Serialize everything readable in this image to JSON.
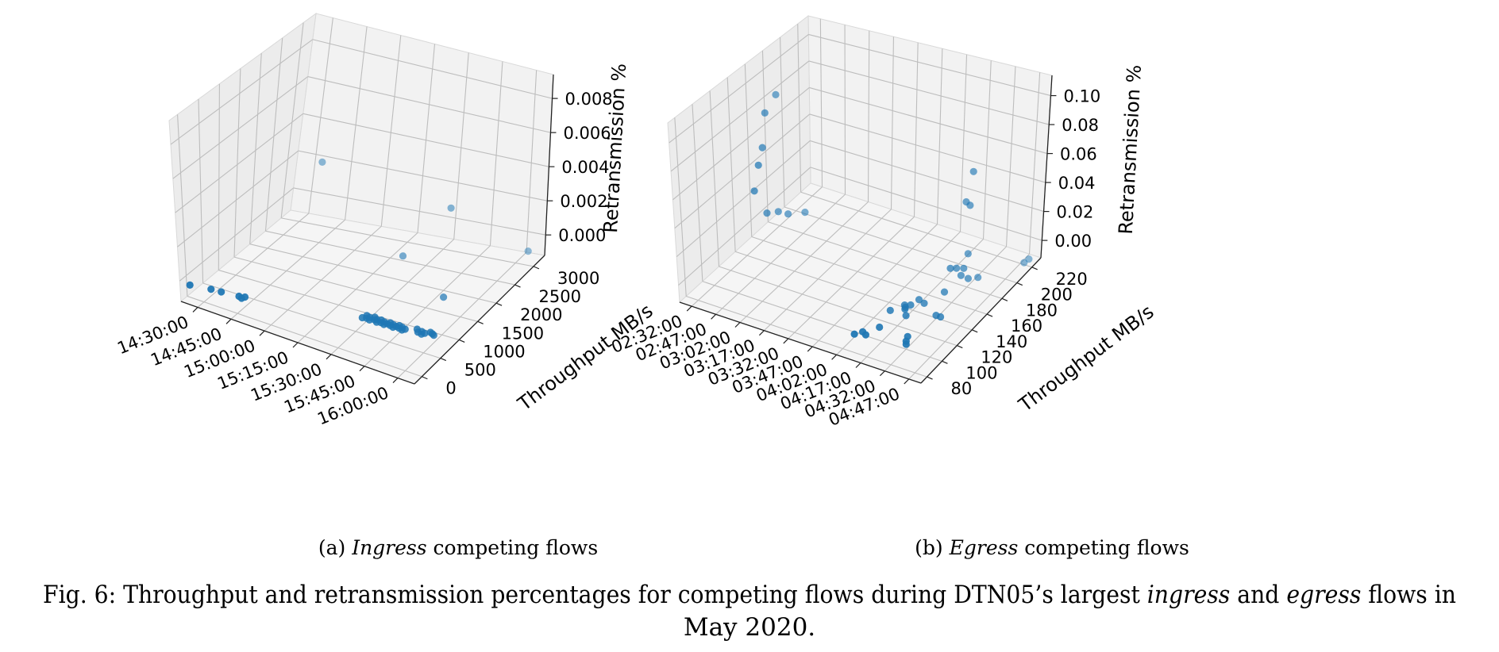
{
  "chart_data": [
    {
      "type": "scatter3d",
      "caption": {
        "prefix": "(a) ",
        "italic": "Ingress",
        "suffix": " competing flows"
      },
      "xlabel": "",
      "ylabel": "Throughput MB/s",
      "zlabel": "Retransmission %",
      "xticks": [
        "14:30:00",
        "14:45:00",
        "15:00:00",
        "15:15:00",
        "15:30:00",
        "15:45:00",
        "16:00:00"
      ],
      "yticks": [
        "0",
        "500",
        "1000",
        "1500",
        "2000",
        "2500",
        "3000"
      ],
      "zticks": [
        "0.000",
        "0.002",
        "0.004",
        "0.006",
        "0.008"
      ],
      "xlim": [
        0,
        6.6
      ],
      "ylim": [
        -150,
        3400
      ],
      "zlim": [
        -0.0005,
        0.0088
      ],
      "grid": true,
      "color": "#1f77b4",
      "points": [
        {
          "x": 0.03,
          "y": 120,
          "z": 0
        },
        {
          "x": 0.55,
          "y": 200,
          "z": 0
        },
        {
          "x": 0.82,
          "y": 220,
          "z": 0
        },
        {
          "x": 1.28,
          "y": 260,
          "z": 0
        },
        {
          "x": 1.38,
          "y": 230,
          "z": 0
        },
        {
          "x": 1.42,
          "y": 290,
          "z": 0
        },
        {
          "x": 4.3,
          "y": 700,
          "z": 0
        },
        {
          "x": 4.35,
          "y": 780,
          "z": 0
        },
        {
          "x": 4.4,
          "y": 720,
          "z": 0
        },
        {
          "x": 4.45,
          "y": 760,
          "z": 0
        },
        {
          "x": 4.5,
          "y": 700,
          "z": 0
        },
        {
          "x": 4.55,
          "y": 800,
          "z": 0
        },
        {
          "x": 4.6,
          "y": 740,
          "z": 0
        },
        {
          "x": 4.65,
          "y": 760,
          "z": 0
        },
        {
          "x": 4.7,
          "y": 700,
          "z": 0
        },
        {
          "x": 4.75,
          "y": 780,
          "z": 0
        },
        {
          "x": 4.8,
          "y": 720,
          "z": 0
        },
        {
          "x": 4.85,
          "y": 760,
          "z": 0
        },
        {
          "x": 4.9,
          "y": 700,
          "z": 0
        },
        {
          "x": 4.95,
          "y": 740,
          "z": 0
        },
        {
          "x": 5.0,
          "y": 780,
          "z": 0
        },
        {
          "x": 5.05,
          "y": 720,
          "z": 0
        },
        {
          "x": 5.1,
          "y": 760,
          "z": 0
        },
        {
          "x": 5.15,
          "y": 700,
          "z": 0
        },
        {
          "x": 5.2,
          "y": 740,
          "z": 0
        },
        {
          "x": 5.25,
          "y": 780,
          "z": 0
        },
        {
          "x": 5.3,
          "y": 720,
          "z": 0
        },
        {
          "x": 5.35,
          "y": 760,
          "z": 0
        },
        {
          "x": 5.4,
          "y": 700,
          "z": 0
        },
        {
          "x": 5.45,
          "y": 740,
          "z": 0
        },
        {
          "x": 5.7,
          "y": 820,
          "z": 0
        },
        {
          "x": 5.78,
          "y": 760,
          "z": 0
        },
        {
          "x": 5.85,
          "y": 800,
          "z": 0
        },
        {
          "x": 5.9,
          "y": 740,
          "z": 0
        },
        {
          "x": 5.95,
          "y": 780,
          "z": 0
        },
        {
          "x": 6.05,
          "y": 840,
          "z": 0
        },
        {
          "x": 6.12,
          "y": 820,
          "z": 0
        },
        {
          "x": 6.18,
          "y": 800,
          "z": 0
        },
        {
          "x": 3.75,
          "y": 2450,
          "z": 0
        },
        {
          "x": 5.55,
          "y": 1700,
          "z": 0
        },
        {
          "x": 6.35,
          "y": 3200,
          "z": 0
        },
        {
          "x": 0.9,
          "y": 3100,
          "z": 0.0025
        },
        {
          "x": 4.55,
          "y": 2900,
          "z": 0.002
        }
      ]
    },
    {
      "type": "scatter3d",
      "caption": {
        "prefix": "(b)  ",
        "italic": "Egress",
        "suffix": " competing flows"
      },
      "xlabel": "",
      "ylabel": "Throughput MB/s",
      "zlabel": "Retransmission %",
      "xticks": [
        "02:32:00",
        "02:47:00",
        "03:02:00",
        "03:17:00",
        "03:32:00",
        "03:47:00",
        "04:02:00",
        "04:17:00",
        "04:32:00",
        "04:47:00"
      ],
      "yticks": [
        "80",
        "100",
        "120",
        "140",
        "160",
        "180",
        "200",
        "220"
      ],
      "zticks": [
        "0.00",
        "0.02",
        "0.04",
        "0.06",
        "0.08",
        "0.10"
      ],
      "xlim": [
        0,
        10.6
      ],
      "ylim": [
        70,
        232
      ],
      "zlim": [
        -0.008,
        0.115
      ],
      "grid": true,
      "color": "#1f77b4",
      "points": [
        {
          "x": 0.3,
          "y": 185,
          "z": 0.082
        },
        {
          "x": 0.45,
          "y": 168,
          "z": 0.078
        },
        {
          "x": 0.6,
          "y": 160,
          "z": 0.058
        },
        {
          "x": 0.7,
          "y": 152,
          "z": 0.05
        },
        {
          "x": 0.55,
          "y": 150,
          "z": 0.032
        },
        {
          "x": 0.7,
          "y": 160,
          "z": 0.012
        },
        {
          "x": 0.65,
          "y": 175,
          "z": 0.005
        },
        {
          "x": 0.9,
          "y": 180,
          "z": 0.002
        },
        {
          "x": 1.3,
          "y": 190,
          "z": 0.0
        },
        {
          "x": 7.2,
          "y": 85,
          "z": 0.0
        },
        {
          "x": 7.4,
          "y": 90,
          "z": 0.0
        },
        {
          "x": 7.6,
          "y": 88,
          "z": 0.0
        },
        {
          "x": 7.8,
          "y": 100,
          "z": 0.0
        },
        {
          "x": 7.6,
          "y": 120,
          "z": 0.0
        },
        {
          "x": 7.9,
          "y": 130,
          "z": 0.0
        },
        {
          "x": 8.0,
          "y": 128,
          "z": 0.0
        },
        {
          "x": 8.05,
          "y": 126,
          "z": 0.0
        },
        {
          "x": 8.1,
          "y": 132,
          "z": 0.0
        },
        {
          "x": 8.2,
          "y": 140,
          "z": 0.0
        },
        {
          "x": 8.3,
          "y": 120,
          "z": 0.0
        },
        {
          "x": 8.5,
          "y": 138,
          "z": 0.0
        },
        {
          "x": 9.05,
          "y": 100,
          "z": 0.0
        },
        {
          "x": 9.15,
          "y": 95,
          "z": 0.0
        },
        {
          "x": 9.25,
          "y": 92,
          "z": 0.0
        },
        {
          "x": 9.3,
          "y": 130,
          "z": 0.0
        },
        {
          "x": 9.5,
          "y": 130,
          "z": 0.0
        },
        {
          "x": 10.55,
          "y": 210,
          "z": 0.0
        },
        {
          "x": 10.6,
          "y": 215,
          "z": 0.0
        },
        {
          "x": 9.1,
          "y": 155,
          "z": 0.018
        },
        {
          "x": 9.2,
          "y": 160,
          "z": 0.016
        },
        {
          "x": 9.35,
          "y": 165,
          "z": 0.014
        },
        {
          "x": 9.4,
          "y": 160,
          "z": 0.012
        },
        {
          "x": 9.55,
          "y": 165,
          "z": 0.008
        },
        {
          "x": 9.65,
          "y": 175,
          "z": 0.004
        },
        {
          "x": 9.0,
          "y": 150,
          "z": 0.004
        },
        {
          "x": 9.3,
          "y": 172,
          "z": 0.02
        },
        {
          "x": 9.2,
          "y": 172,
          "z": 0.055
        },
        {
          "x": 9.3,
          "y": 174,
          "z": 0.052
        },
        {
          "x": 9.4,
          "y": 175,
          "z": 0.075
        }
      ]
    }
  ],
  "figure_caption": {
    "line1": [
      {
        "text": "Fig. 6: Throughput and retransmission percentages for competing flows during DTN05’s largest ",
        "italic": false
      },
      {
        "text": "ingress",
        "italic": true
      },
      {
        "text": " and ",
        "italic": false
      },
      {
        "text": "egress",
        "italic": true
      },
      {
        "text": " flows in",
        "italic": false
      }
    ],
    "line2": "May 2020."
  }
}
